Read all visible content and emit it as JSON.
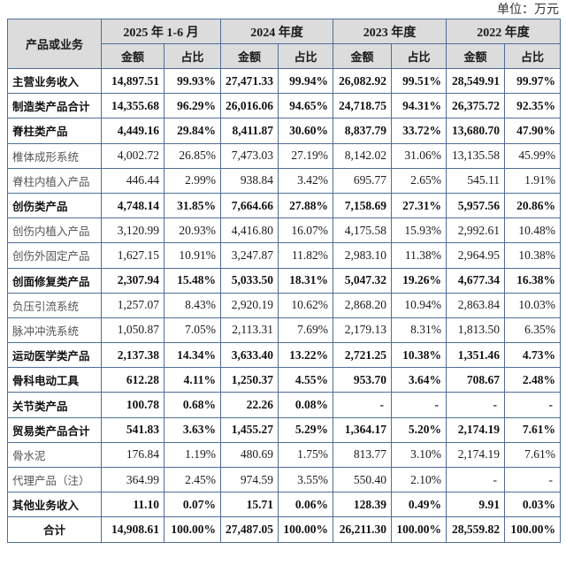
{
  "unit_label": "单位：万元",
  "header": {
    "first_col": "产品或业务",
    "periods": [
      "2025 年 1-6 月",
      "2024 年度",
      "2023 年度",
      "2022 年度"
    ],
    "sub_cols": [
      "金额",
      "占比"
    ]
  },
  "rows": [
    {
      "label": "主营业务收入",
      "bold": true,
      "values": [
        "14,897.51",
        "99.93%",
        "27,471.33",
        "99.94%",
        "26,082.92",
        "99.51%",
        "28,549.91",
        "99.97%"
      ]
    },
    {
      "label": "制造类产品合计",
      "bold": true,
      "values": [
        "14,355.68",
        "96.29%",
        "26,016.06",
        "94.65%",
        "24,718.75",
        "94.31%",
        "26,375.72",
        "92.35%"
      ]
    },
    {
      "label": "脊柱类产品",
      "bold": true,
      "values": [
        "4,449.16",
        "29.84%",
        "8,411.87",
        "30.60%",
        "8,837.79",
        "33.72%",
        "13,680.70",
        "47.90%"
      ]
    },
    {
      "label": "椎体成形系统",
      "bold": false,
      "values": [
        "4,002.72",
        "26.85%",
        "7,473.03",
        "27.19%",
        "8,142.02",
        "31.06%",
        "13,135.58",
        "45.99%"
      ]
    },
    {
      "label": "脊柱内植入产品",
      "bold": false,
      "values": [
        "446.44",
        "2.99%",
        "938.84",
        "3.42%",
        "695.77",
        "2.65%",
        "545.11",
        "1.91%"
      ]
    },
    {
      "label": "创伤类产品",
      "bold": true,
      "values": [
        "4,748.14",
        "31.85%",
        "7,664.66",
        "27.88%",
        "7,158.69",
        "27.31%",
        "5,957.56",
        "20.86%"
      ]
    },
    {
      "label": "创伤内植入产品",
      "bold": false,
      "values": [
        "3,120.99",
        "20.93%",
        "4,416.80",
        "16.07%",
        "4,175.58",
        "15.93%",
        "2,992.61",
        "10.48%"
      ]
    },
    {
      "label": "创伤外固定产品",
      "bold": false,
      "values": [
        "1,627.15",
        "10.91%",
        "3,247.87",
        "11.82%",
        "2,983.10",
        "11.38%",
        "2,964.95",
        "10.38%"
      ]
    },
    {
      "label": "创面修复类产品",
      "bold": true,
      "values": [
        "2,307.94",
        "15.48%",
        "5,033.50",
        "18.31%",
        "5,047.32",
        "19.26%",
        "4,677.34",
        "16.38%"
      ]
    },
    {
      "label": "负压引流系统",
      "bold": false,
      "values": [
        "1,257.07",
        "8.43%",
        "2,920.19",
        "10.62%",
        "2,868.20",
        "10.94%",
        "2,863.84",
        "10.03%"
      ]
    },
    {
      "label": "脉冲冲洗系统",
      "bold": false,
      "values": [
        "1,050.87",
        "7.05%",
        "2,113.31",
        "7.69%",
        "2,179.13",
        "8.31%",
        "1,813.50",
        "6.35%"
      ]
    },
    {
      "label": "运动医学类产品",
      "bold": true,
      "values": [
        "2,137.38",
        "14.34%",
        "3,633.40",
        "13.22%",
        "2,721.25",
        "10.38%",
        "1,351.46",
        "4.73%"
      ]
    },
    {
      "label": "骨科电动工具",
      "bold": true,
      "values": [
        "612.28",
        "4.11%",
        "1,250.37",
        "4.55%",
        "953.70",
        "3.64%",
        "708.67",
        "2.48%"
      ]
    },
    {
      "label": "关节类产品",
      "bold": true,
      "values": [
        "100.78",
        "0.68%",
        "22.26",
        "0.08%",
        "-",
        "-",
        "-",
        "-"
      ]
    },
    {
      "label": "贸易类产品合计",
      "bold": true,
      "values": [
        "541.83",
        "3.63%",
        "1,455.27",
        "5.29%",
        "1,364.17",
        "5.20%",
        "2,174.19",
        "7.61%"
      ]
    },
    {
      "label": "骨水泥",
      "bold": false,
      "values": [
        "176.84",
        "1.19%",
        "480.69",
        "1.75%",
        "813.77",
        "3.10%",
        "2,174.19",
        "7.61%"
      ]
    },
    {
      "label": "代理产品（注）",
      "bold": false,
      "values": [
        "364.99",
        "2.45%",
        "974.59",
        "3.55%",
        "550.40",
        "2.10%",
        "-",
        "-"
      ]
    },
    {
      "label": "其他业务收入",
      "bold": true,
      "values": [
        "11.10",
        "0.07%",
        "15.71",
        "0.06%",
        "128.39",
        "0.49%",
        "9.91",
        "0.03%"
      ]
    },
    {
      "label": "合计",
      "bold": true,
      "total": true,
      "values": [
        "14,908.61",
        "100.00%",
        "27,487.05",
        "100.00%",
        "26,211.30",
        "100.00%",
        "28,559.82",
        "100.00%"
      ]
    }
  ],
  "colors": {
    "header_bg": "#dcdcdc",
    "border": "#4f6d99"
  }
}
